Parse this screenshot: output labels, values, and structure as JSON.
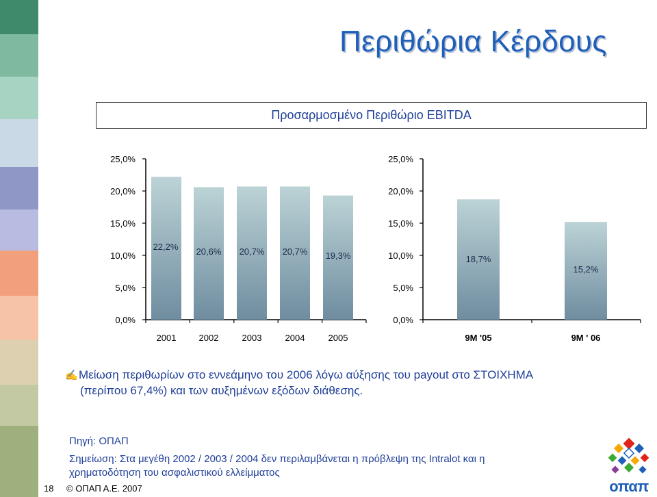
{
  "slide": {
    "title": "Περιθώρια Κέρδους",
    "chart_box_title": "Προσαρμοσμένο Περιθώριο EBITDA",
    "bullet_line1": "Μείωση περιθωρίων στο εννεάμηνο του 2006 λόγω αύξησης του payout  στο ΣΤΟΙΧΗΜΑ",
    "bullet_line2": "(περίπου 67,4%) και των αυξημένων εξόδων διάθεσης.",
    "bullet_glyph": "✍",
    "source": "Πηγή: ΟΠΑΠ",
    "note": "Σημείωση: Στα μεγέθη 2002 / 2003 / 2004 δεν περιλαμβάνεται η πρόβλεψη της Intralot και η χρηματοδότηση του ασφαλιστικού ελλείμματος",
    "page_number": "18",
    "copyright": "© ΟΠΑΠ Α.Ε. 2007",
    "logo_text": "οπαπ"
  },
  "colors": {
    "title": "#1f5fb8",
    "text_blue": "#1f3f99",
    "bar_top": "#bcd3d6",
    "bar_bottom": "#6f8da0"
  },
  "chart_data": [
    {
      "type": "bar",
      "categories": [
        "2001",
        "2002",
        "2003",
        "2004",
        "2005"
      ],
      "values": [
        22.2,
        20.6,
        20.7,
        20.7,
        19.3
      ],
      "data_labels": [
        "22,2%",
        "20,6%",
        "20,7%",
        "20,7%",
        "19,3%"
      ],
      "ytick_values": [
        0,
        5,
        10,
        15,
        20,
        25
      ],
      "ytick_labels": [
        "0,0%",
        "5,0%",
        "10,0%",
        "15,0%",
        "20,0%",
        "25,0%"
      ],
      "ylim": [
        0,
        25
      ],
      "grid": false
    },
    {
      "type": "bar",
      "categories": [
        "9M '05",
        "9M ' 06"
      ],
      "values": [
        18.7,
        15.2
      ],
      "data_labels": [
        "18,7%",
        "15,2%"
      ],
      "ytick_values": [
        0,
        5,
        10,
        15,
        20,
        25
      ],
      "ytick_labels": [
        "0,0%",
        "5,0%",
        "10,0%",
        "15,0%",
        "20,0%",
        "25,0%"
      ],
      "ylim": [
        0,
        25
      ],
      "grid": false
    }
  ]
}
